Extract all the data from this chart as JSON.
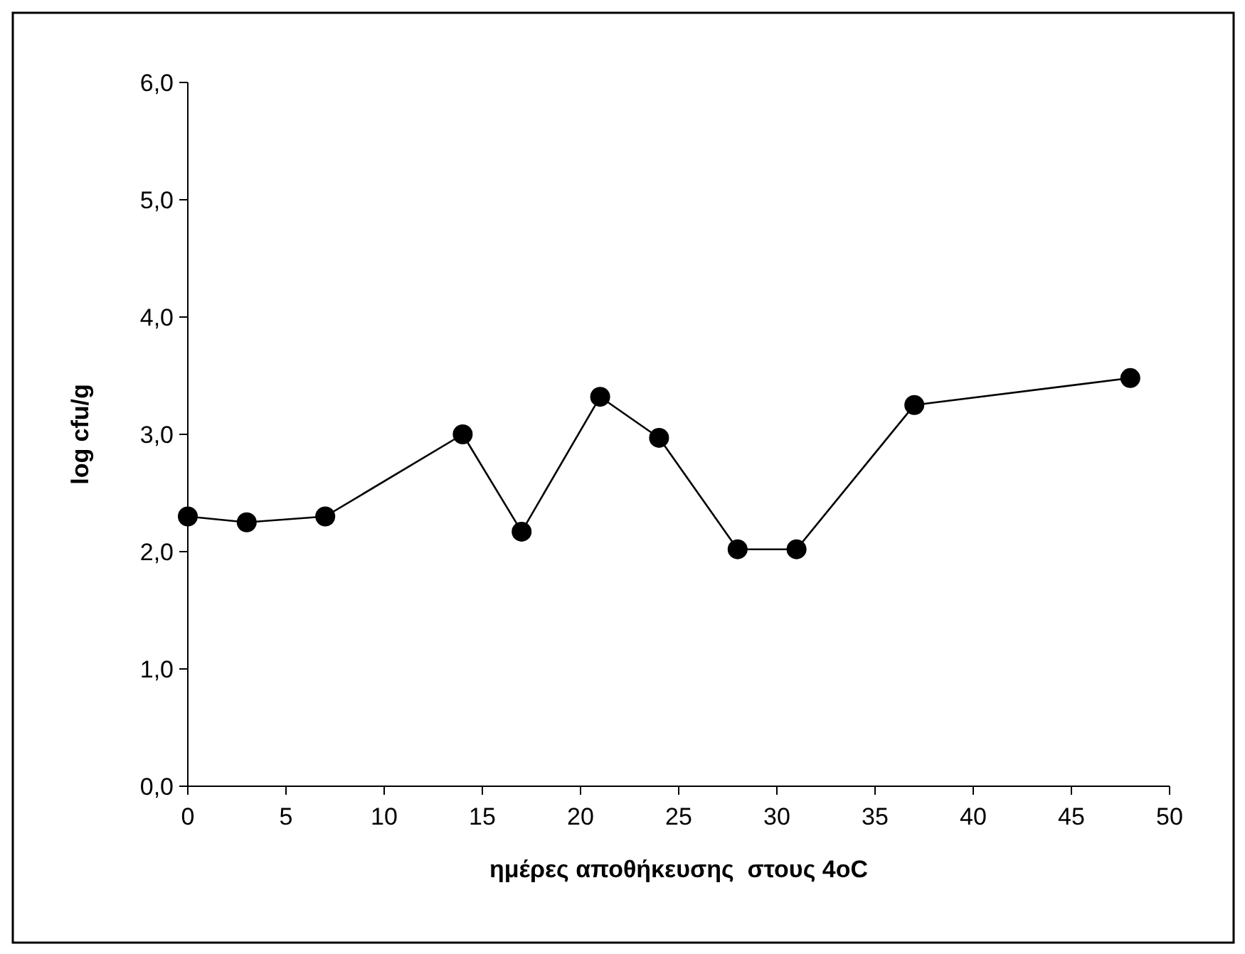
{
  "chart_data": {
    "type": "line",
    "xlabel": "ημέρες αποθήκευσης  στους 4oC",
    "ylabel": "log cfu/g",
    "x": [
      0,
      3,
      7,
      14,
      17,
      21,
      24,
      28,
      31,
      37,
      48
    ],
    "series": [
      {
        "color": "#000000",
        "values": [
          2.3,
          2.25,
          2.3,
          3.0,
          2.17,
          3.32,
          2.97,
          2.02,
          2.02,
          3.25,
          3.48
        ]
      }
    ],
    "xlim": [
      0,
      50
    ],
    "xticks": [
      0,
      5,
      10,
      15,
      20,
      25,
      30,
      35,
      40,
      45,
      50
    ],
    "ylim": [
      0,
      6
    ],
    "yticks": [
      {
        "value": 0,
        "label": "0,0"
      },
      {
        "value": 1,
        "label": "1,0"
      },
      {
        "value": 2,
        "label": "2,0"
      },
      {
        "value": 3,
        "label": "3,0"
      },
      {
        "value": 4,
        "label": "4,0"
      },
      {
        "value": 5,
        "label": "5,0"
      },
      {
        "value": 6,
        "label": "6,0"
      }
    ],
    "grid": false,
    "marker": "circle",
    "line_style": "solid"
  }
}
